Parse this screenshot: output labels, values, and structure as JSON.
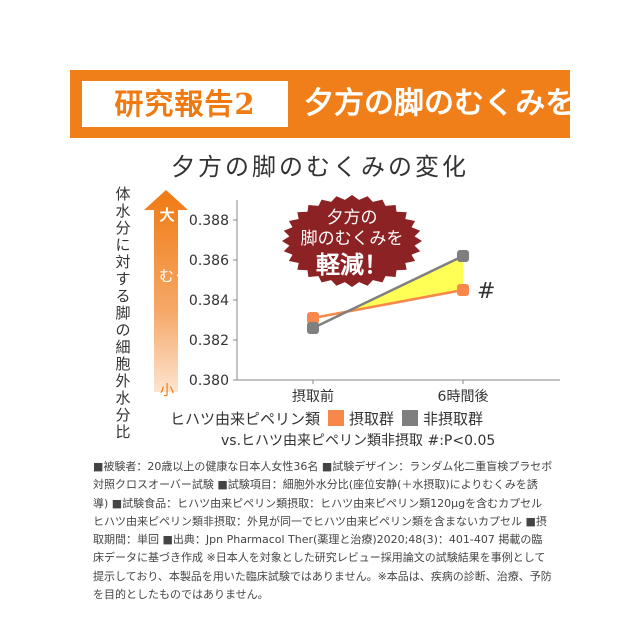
{
  "banner": {
    "label": "研究報告2",
    "headline": "夕方の脚のむくみを軽減"
  },
  "chart_data": {
    "type": "line",
    "title": "夕方の脚のむくみの変化",
    "ylabel": "体水分に対する脚の細胞外水分比",
    "ylim": [
      0.38,
      0.389
    ],
    "yticks": [
      "0.388",
      "0.386",
      "0.384",
      "0.382",
      "0.380"
    ],
    "categories": [
      "摂取前",
      "6時間後"
    ],
    "series": [
      {
        "name": "摂取群",
        "values": [
          0.3831,
          0.3845
        ],
        "color": "#f7874a"
      },
      {
        "name": "非摂取群",
        "values": [
          0.3826,
          0.3862
        ],
        "color": "#7f7f7f"
      }
    ],
    "fill_color": "#ffff55",
    "arrow": {
      "top_label": "大",
      "mid_label": "むくみ",
      "bottom_label": "小"
    },
    "badge": {
      "line1": "夕方の",
      "line2": "脚のむくみを",
      "line3": "軽減！"
    },
    "significance_mark": "#",
    "legend_prefix": "ヒハツ由来ピペリン類",
    "note": "vs.ヒハツ由来ピペリン類非摂取 #:P<0.05"
  },
  "footnote": "■被験者：20歳以上の健康な日本人女性36名 ■試験デザイン：ランダム化二重盲検プラセボ対照クロスオーバー試験 ■試験項目：細胞外水分比(座位安静(＋水摂取)によりむくみを誘導) ■試験食品：ヒハツ由来ピペリン類摂取：ヒハツ由来ピペリン類120μgを含むカプセル ヒハツ由来ピペリン類非摂取：外見が同一でヒハツ由来ピペリン類を含まないカプセル ■摂取期間：単回 ■出典：Jpn Pharmacol Ther(薬理と治療)2020;48(3)：401-407 掲載の臨床データに基づき作成 ※日本人を対象とした研究レビュー採用論文の試験結果を事例として提示しており、本製品を用いた臨床試験ではありません。※本品は、疾病の診断、治療、予防を目的としたものではありません。"
}
